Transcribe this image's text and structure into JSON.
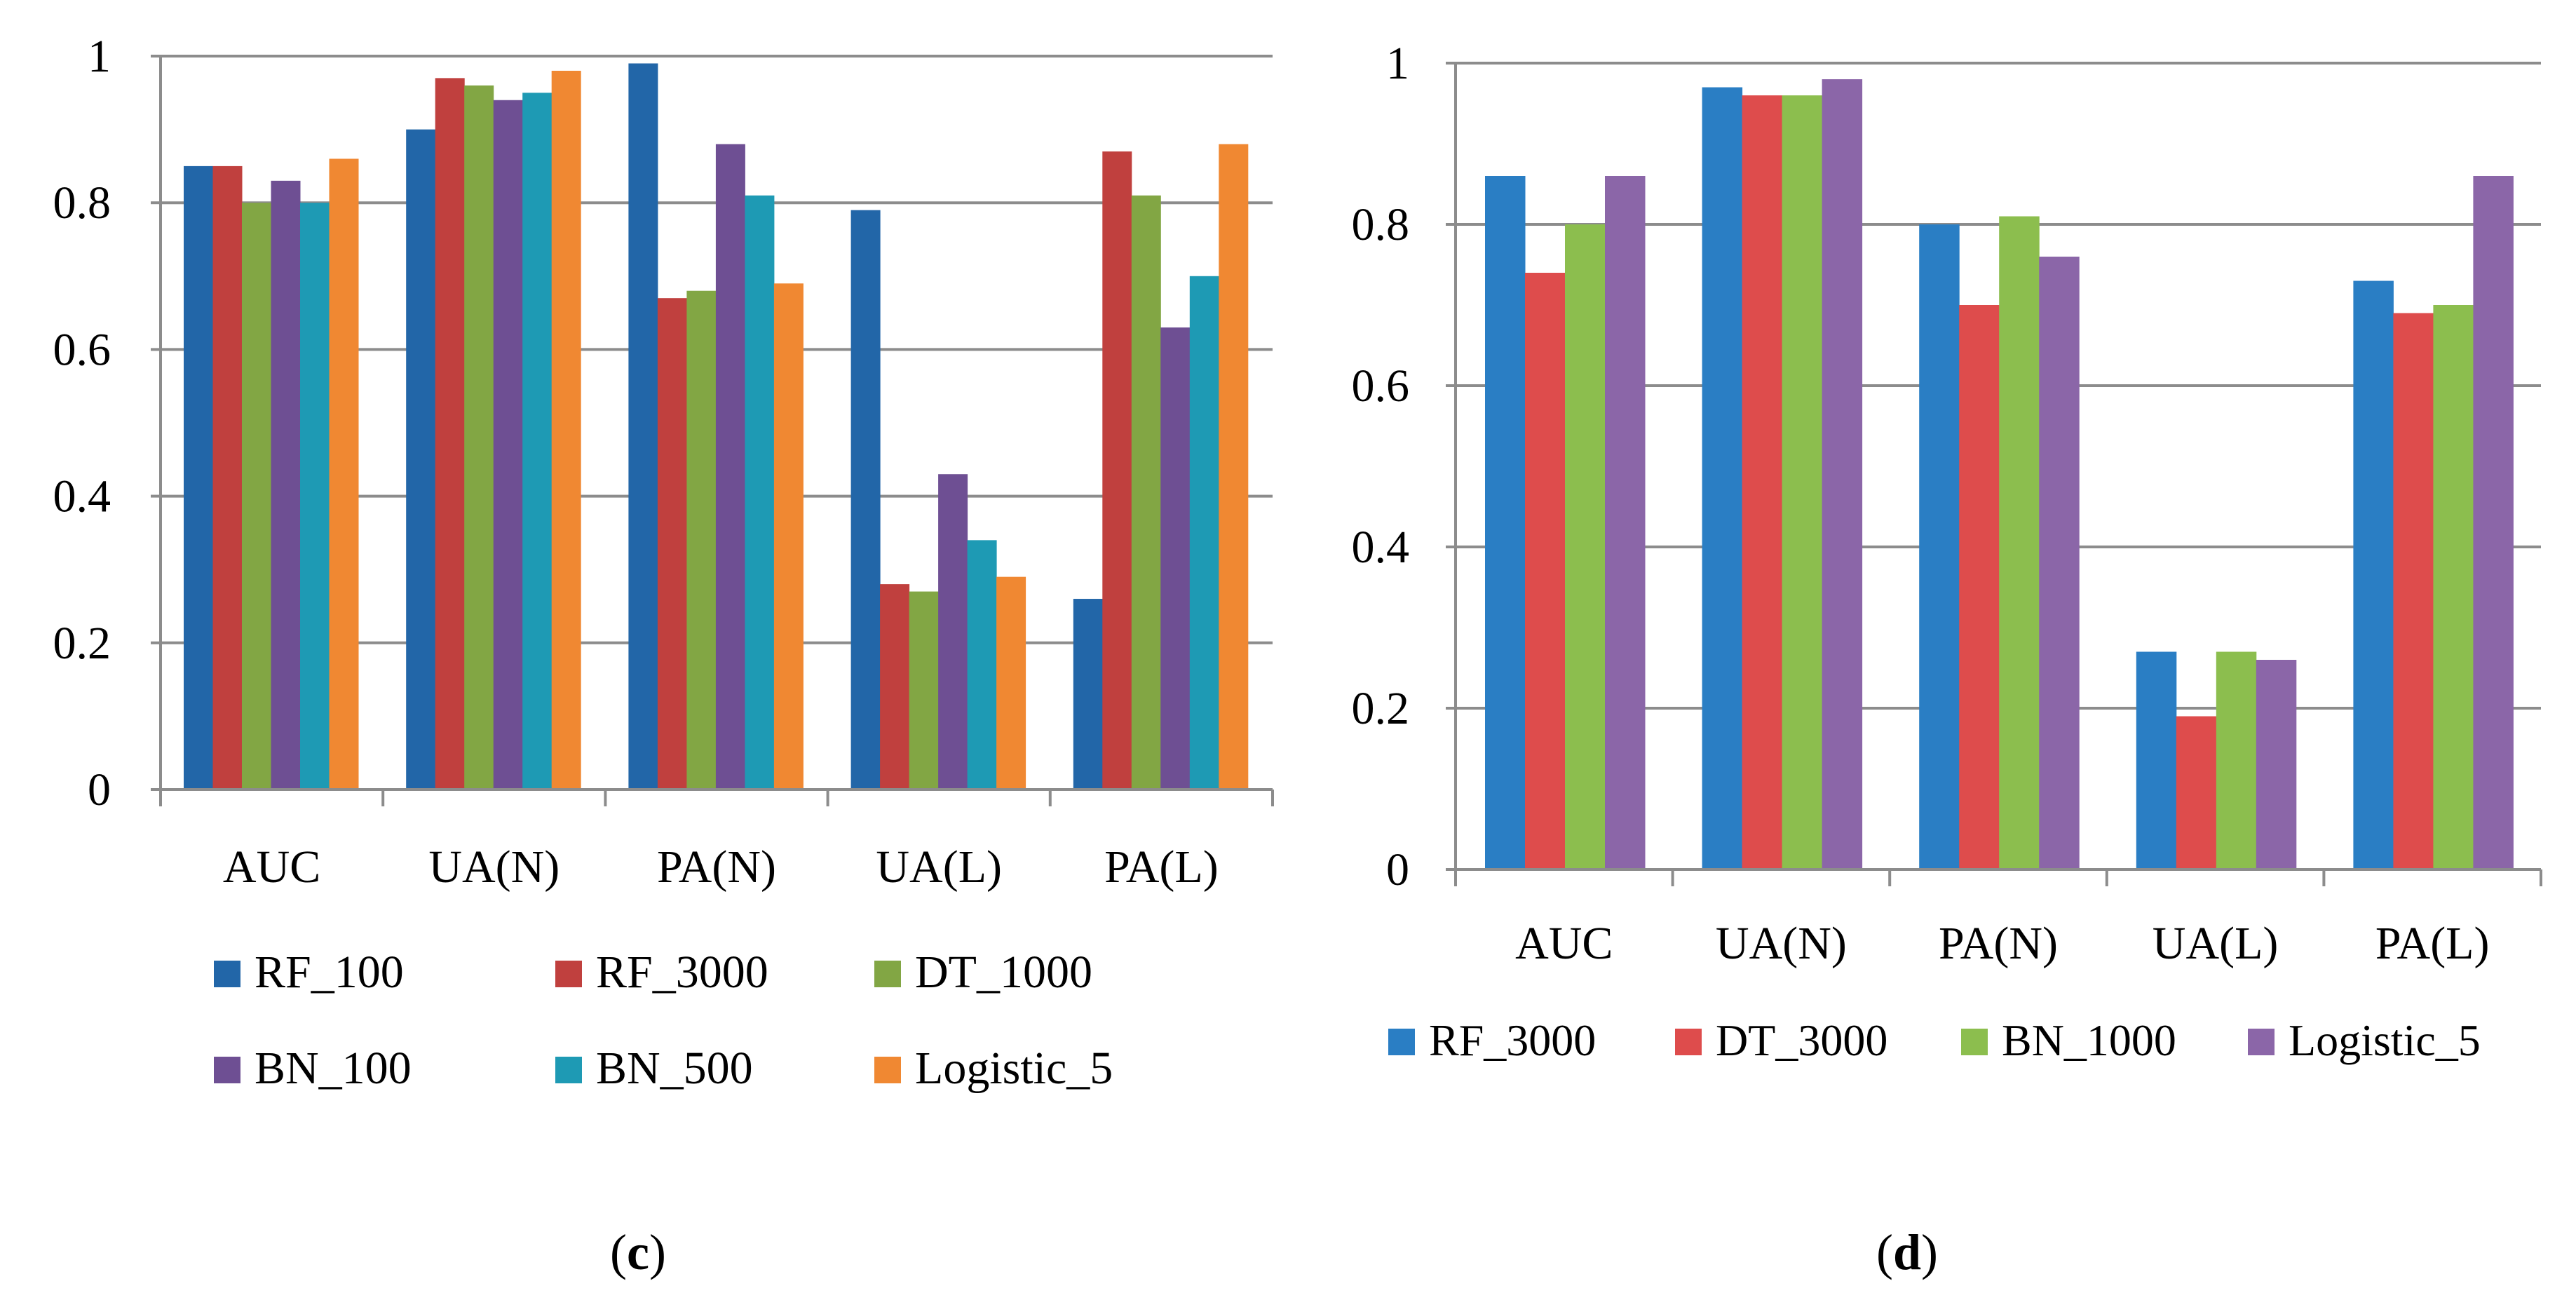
{
  "chart_data": [
    {
      "type": "bar",
      "panel_label_paren_open": "(",
      "panel_label_letter": "c",
      "panel_label_paren_close": ")",
      "categories": [
        "AUC",
        "UA(N)",
        "PA(N)",
        "UA(L)",
        "PA(L)"
      ],
      "ylim": [
        0,
        1
      ],
      "yticks": [
        0,
        0.2,
        0.4,
        0.6,
        0.8,
        1
      ],
      "ytick_labels": [
        "0",
        "0.2",
        "0.4",
        "0.6",
        "0.8",
        "1"
      ],
      "grid": true,
      "legend_position": "bottom",
      "series": [
        {
          "name": "RF_100",
          "color": "#2266A8",
          "values": [
            0.85,
            0.9,
            0.99,
            0.79,
            0.26
          ]
        },
        {
          "name": "RF_3000",
          "color": "#C0403E",
          "values": [
            0.85,
            0.97,
            0.67,
            0.28,
            0.87
          ]
        },
        {
          "name": "DT_1000",
          "color": "#82A644",
          "values": [
            0.8,
            0.96,
            0.68,
            0.27,
            0.81
          ]
        },
        {
          "name": "BN_100",
          "color": "#6E4F93",
          "values": [
            0.83,
            0.94,
            0.88,
            0.43,
            0.63
          ]
        },
        {
          "name": "BN_500",
          "color": "#1E9AB4",
          "values": [
            0.8,
            0.95,
            0.81,
            0.34,
            0.7
          ]
        },
        {
          "name": "Logistic_5",
          "color": "#F08832",
          "values": [
            0.86,
            0.98,
            0.69,
            0.29,
            0.88
          ]
        }
      ]
    },
    {
      "type": "bar",
      "panel_label_paren_open": "(",
      "panel_label_letter": "d",
      "panel_label_paren_close": ")",
      "categories": [
        "AUC",
        "UA(N)",
        "PA(N)",
        "UA(L)",
        "PA(L)"
      ],
      "ylim": [
        0,
        1
      ],
      "yticks": [
        0,
        0.2,
        0.4,
        0.6,
        0.8,
        1
      ],
      "ytick_labels": [
        "0",
        "0.2",
        "0.4",
        "0.6",
        "0.8",
        "1"
      ],
      "grid": true,
      "legend_position": "bottom",
      "series": [
        {
          "name": "RF_3000",
          "color": "#2A7EC4",
          "values": [
            0.86,
            0.97,
            0.8,
            0.27,
            0.73
          ]
        },
        {
          "name": "DT_3000",
          "color": "#DE4C4C",
          "values": [
            0.74,
            0.96,
            0.7,
            0.19,
            0.69
          ]
        },
        {
          "name": "BN_1000",
          "color": "#8CBE4E",
          "values": [
            0.8,
            0.96,
            0.81,
            0.27,
            0.7
          ]
        },
        {
          "name": "Logistic_5",
          "color": "#8B66A8",
          "values": [
            0.86,
            0.98,
            0.76,
            0.26,
            0.86
          ]
        }
      ]
    }
  ]
}
